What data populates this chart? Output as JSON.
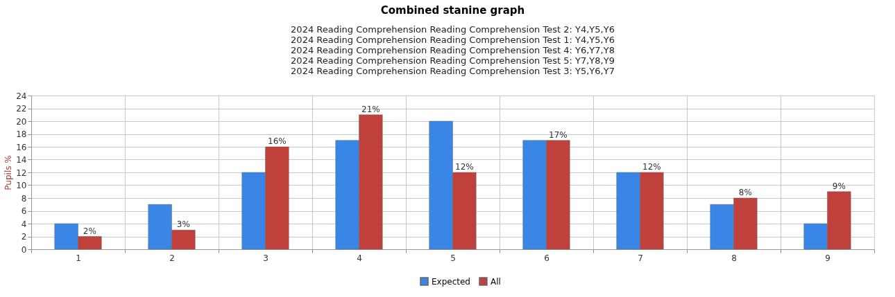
{
  "chart_data": {
    "type": "bar",
    "title": "Combined stanine graph",
    "subtitle": "2024 Reading Comprehension Reading Comprehension Test 2: Y4,Y5,Y6\n2024 Reading Comprehension Reading Comprehension Test 1: Y4,Y5,Y6\n2024 Reading Comprehension Reading Comprehension Test 4: Y6,Y7,Y8\n2024 Reading Comprehension Reading Comprehension Test 5: Y7,Y8,Y9\n2024 Reading Comprehension Reading Comprehension Test 3: Y5,Y6,Y7",
    "ylabel": "Pupils %",
    "categories": [
      "1",
      "2",
      "3",
      "4",
      "5",
      "6",
      "7",
      "8",
      "9"
    ],
    "series": [
      {
        "name": "Expected",
        "color": "#3a86e6",
        "values": [
          4,
          7,
          12,
          17,
          20,
          17,
          12,
          7,
          4
        ]
      },
      {
        "name": "All",
        "color": "#c0403c",
        "values": [
          2,
          3,
          16,
          21,
          12,
          17,
          12,
          8,
          9
        ],
        "value_labels": [
          "2%",
          "3%",
          "16%",
          "21%",
          "12%",
          "17%",
          "12%",
          "8%",
          "9%"
        ]
      }
    ],
    "ylim": [
      0,
      24
    ],
    "yticks": [
      0,
      2,
      4,
      6,
      8,
      10,
      12,
      14,
      16,
      18,
      20,
      22,
      24
    ],
    "grid": true,
    "legend": "bottom"
  }
}
